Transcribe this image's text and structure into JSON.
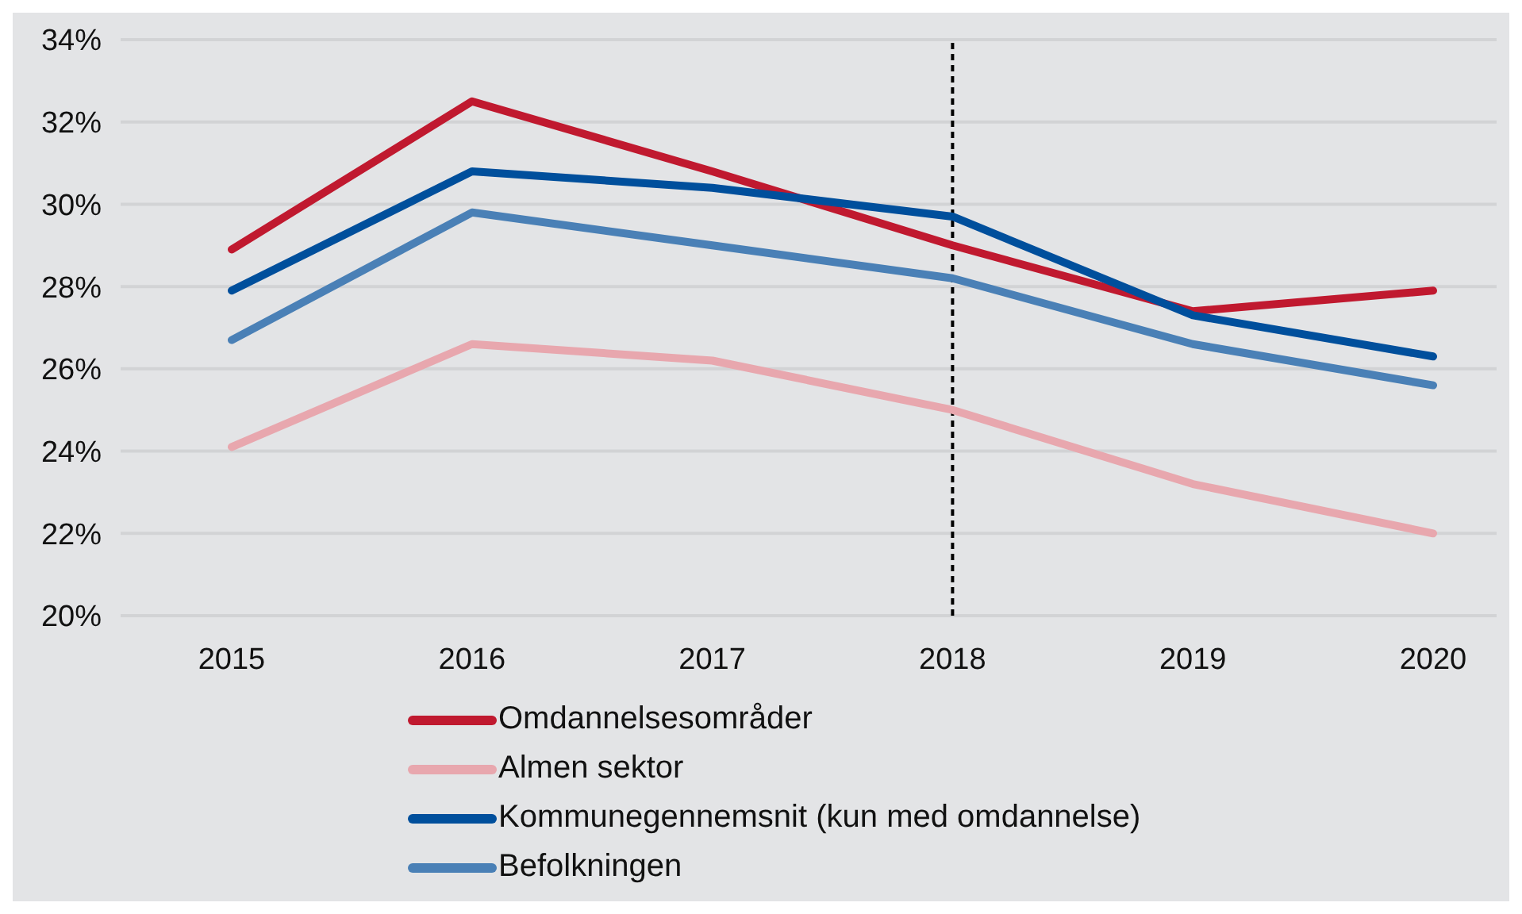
{
  "chart_data": {
    "type": "line",
    "categories": [
      "2015",
      "2016",
      "2017",
      "2018",
      "2019",
      "2020"
    ],
    "series": [
      {
        "name": "Omdannelsesområder",
        "color": "#c0192f",
        "values": [
          28.9,
          32.5,
          30.8,
          29.0,
          27.4,
          27.9
        ]
      },
      {
        "name": "Almen sektor",
        "color": "#e8a7ae",
        "values": [
          24.1,
          26.6,
          26.2,
          25.0,
          23.2,
          22.0
        ]
      },
      {
        "name": "Kommunegennemsnit (kun med omdannelse)",
        "color": "#004f9c",
        "values": [
          27.9,
          30.8,
          30.4,
          29.7,
          27.3,
          26.3
        ]
      },
      {
        "name": "Befolkningen",
        "color": "#4a80b6",
        "values": [
          26.7,
          29.8,
          29.0,
          28.2,
          26.6,
          25.6
        ]
      }
    ],
    "ylim": [
      20,
      34
    ],
    "yticks": [
      {
        "value": 20,
        "label": "20%"
      },
      {
        "value": 22,
        "label": "22%"
      },
      {
        "value": 24,
        "label": "24%"
      },
      {
        "value": 26,
        "label": "26%"
      },
      {
        "value": 28,
        "label": "28%"
      },
      {
        "value": 30,
        "label": "30%"
      },
      {
        "value": 32,
        "label": "32%"
      },
      {
        "value": 34,
        "label": "34%"
      }
    ],
    "ref_lines": [
      {
        "axis": "x",
        "value": "2018",
        "color": "#000000",
        "line_style": "dashed"
      }
    ],
    "grid": "y",
    "legend": "bottom",
    "marker": "none",
    "line_style": "solid"
  }
}
